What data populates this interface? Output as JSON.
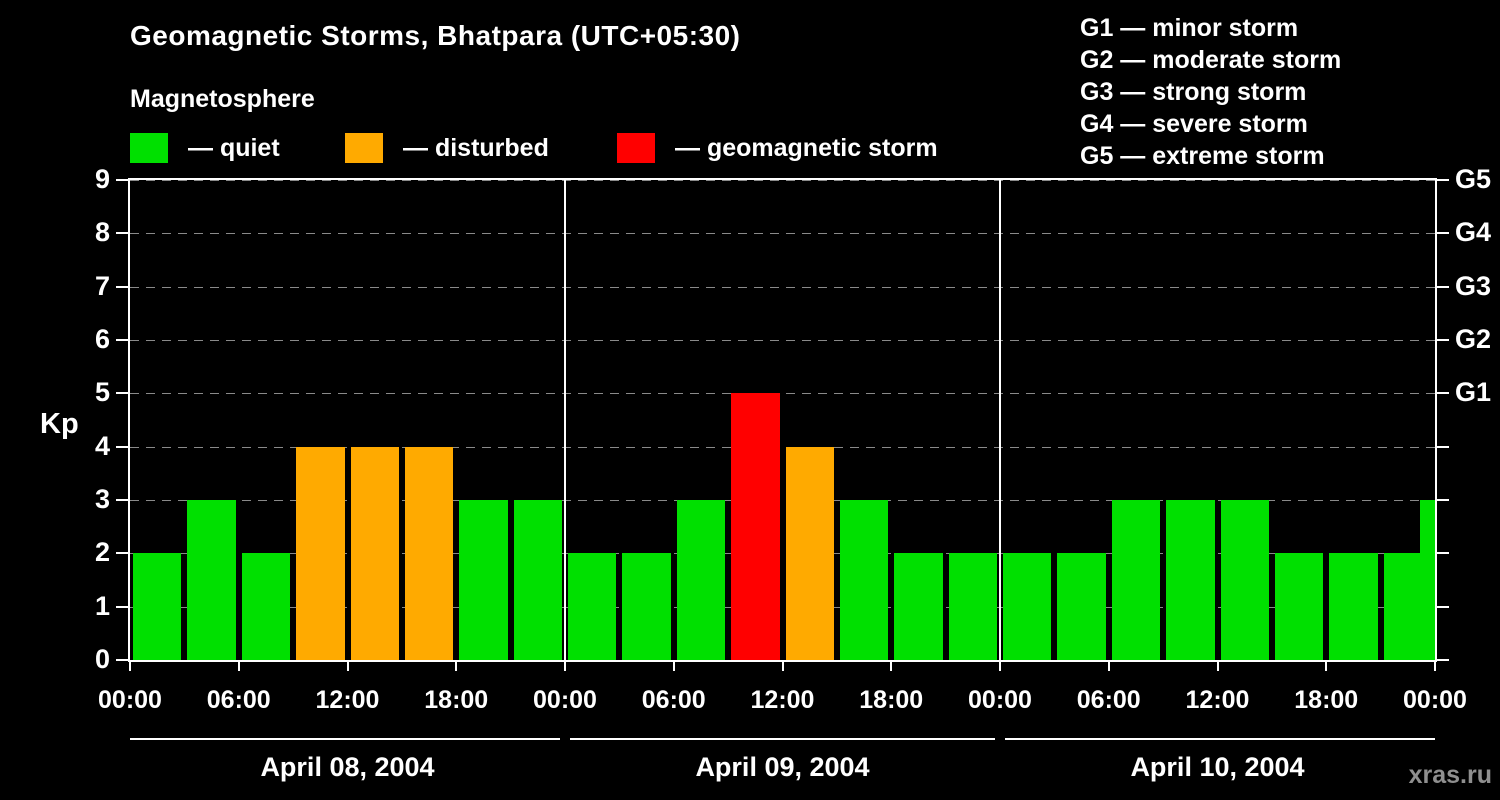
{
  "title": "Geomagnetic Storms, Bhatpara (UTC+05:30)",
  "subtitle": "Magnetosphere",
  "legend": {
    "quiet": "— quiet",
    "disturbed": "— disturbed",
    "storm": "— geomagnetic storm"
  },
  "g_legend": [
    "G1 — minor storm",
    "G2 — moderate storm",
    "G3 — strong storm",
    "G4 — severe storm",
    "G5 — extreme storm"
  ],
  "watermark": "xras.ru",
  "colors": {
    "quiet": "#00e000",
    "disturbed": "#ffaa00",
    "storm": "#ff0000",
    "background": "#000000",
    "text": "#ffffff",
    "grid": "#8a8a8a"
  },
  "chart_data": {
    "type": "bar",
    "title": "Geomagnetic Storms, Bhatpara (UTC+05:30)",
    "ylabel": "Kp",
    "ylim": [
      0,
      9
    ],
    "yticks": [
      0,
      1,
      2,
      3,
      4,
      5,
      6,
      7,
      8,
      9
    ],
    "bar_interval_hours": 3,
    "xticks": [
      "00:00",
      "06:00",
      "12:00",
      "18:00",
      "00:00",
      "06:00",
      "12:00",
      "18:00",
      "00:00",
      "06:00",
      "12:00",
      "18:00",
      "00:00"
    ],
    "right_axis": [
      {
        "label": "G1",
        "kp": 5
      },
      {
        "label": "G2",
        "kp": 6
      },
      {
        "label": "G3",
        "kp": 7
      },
      {
        "label": "G4",
        "kp": 8
      },
      {
        "label": "G5",
        "kp": 9
      }
    ],
    "days": [
      {
        "label": "April 08, 2004",
        "values": [
          2,
          3,
          2,
          4,
          4,
          4,
          3,
          3
        ]
      },
      {
        "label": "April 09, 2004",
        "values": [
          2,
          2,
          3,
          5,
          4,
          3,
          2,
          2
        ]
      },
      {
        "label": "April 10, 2004",
        "values": [
          2,
          2,
          3,
          3,
          3,
          2,
          2,
          2
        ]
      }
    ],
    "partial_end_bar": {
      "value": 3
    },
    "color_rule": {
      "quiet_max": 3,
      "disturbed_max": 4
    }
  }
}
